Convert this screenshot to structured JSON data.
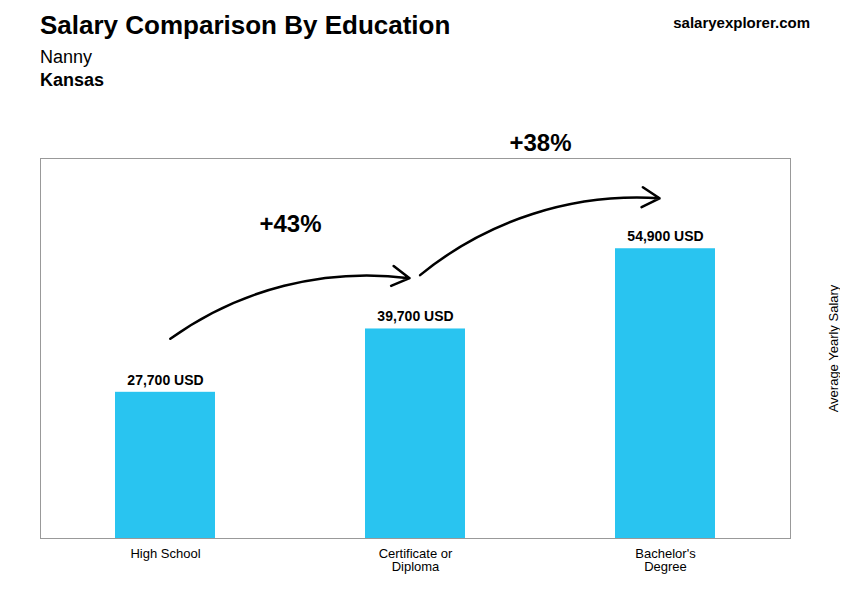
{
  "chart_data": {
    "type": "bar",
    "title": "Salary Comparison By Education",
    "subtitle": [
      "Nanny",
      "Kansas"
    ],
    "source": "salaryexplorer.com",
    "categories": [
      "High School",
      "Certificate or\nDiploma",
      "Bachelor's\nDegree"
    ],
    "values": [
      27700,
      39700,
      54900
    ],
    "value_labels": [
      "27,700 USD",
      "39,700 USD",
      "54,900 USD"
    ],
    "data_labels": true,
    "color": "#29c4f0",
    "ylabel": "Average Yearly Salary",
    "ylim": [
      0,
      72000
    ],
    "yticks": [],
    "tick_labels": "x",
    "annotations": [
      "+43%",
      "+38%"
    ]
  }
}
